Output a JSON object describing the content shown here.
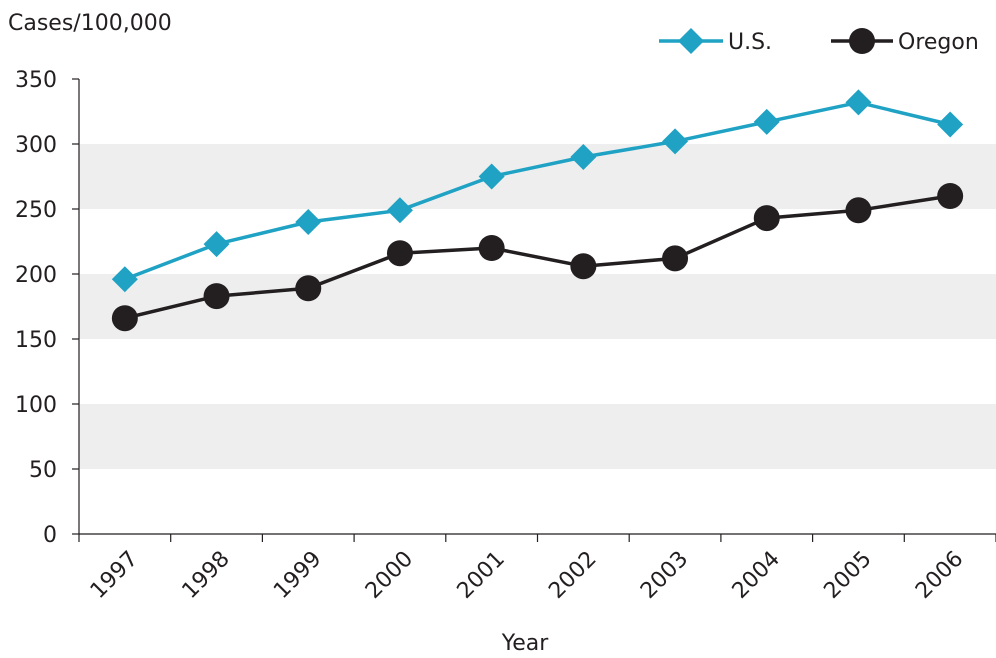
{
  "chart_data": {
    "type": "line",
    "ylabel": "Cases/100,000",
    "xlabel": "Year",
    "categories": [
      "1997",
      "1998",
      "1999",
      "2000",
      "2001",
      "2002",
      "2003",
      "2004",
      "2005",
      "2006"
    ],
    "yticks": [
      "0",
      "50",
      "100",
      "150",
      "200",
      "250",
      "300",
      "350"
    ],
    "ylim": [
      0,
      350
    ],
    "grid": "alternating horizontal bands",
    "legend_position": "top-right",
    "series": [
      {
        "name": "U.S.",
        "color": "#1fa2c4",
        "marker": "diamond",
        "values": [
          196,
          223,
          240,
          249,
          275,
          290,
          302,
          317,
          332,
          315
        ]
      },
      {
        "name": "Oregon",
        "color": "#231f20",
        "marker": "circle",
        "values": [
          166,
          183,
          189,
          216,
          220,
          206,
          212,
          243,
          249,
          260
        ]
      }
    ],
    "colors": {
      "band": "#eeeeee",
      "axis": "#231f20"
    }
  }
}
